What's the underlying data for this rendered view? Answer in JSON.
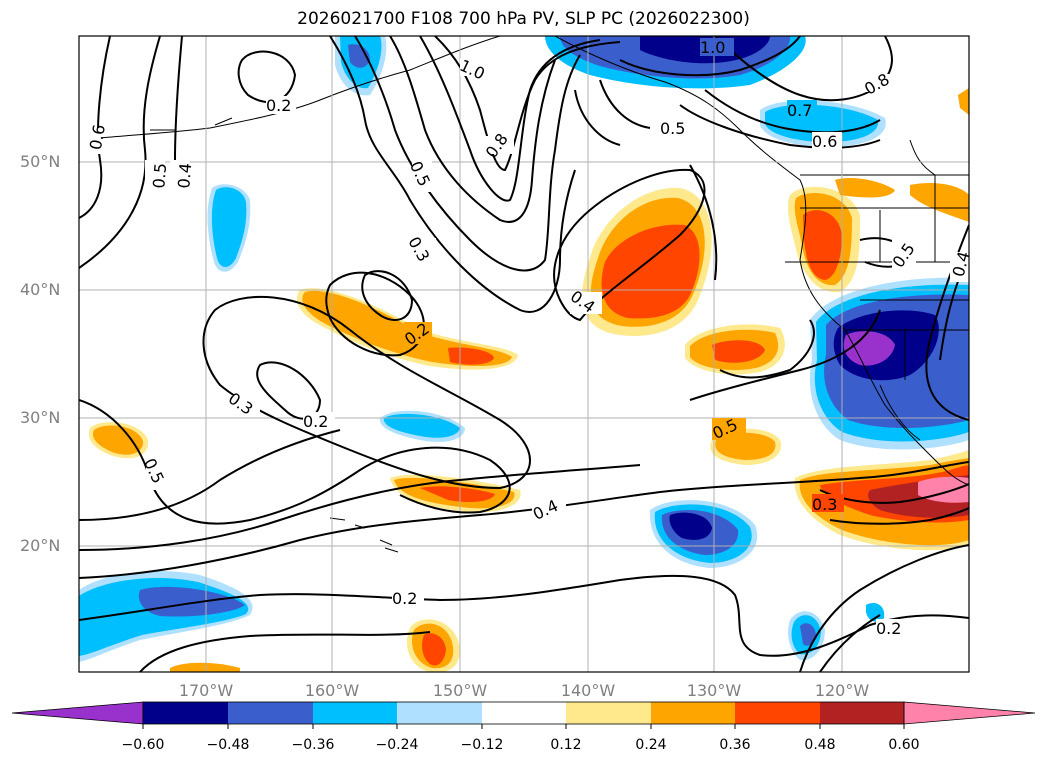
{
  "title": "2026021700 F108 700 hPa PV, SLP PC (2026022300)",
  "lat_labels": [
    "50°N",
    "40°N",
    "30°N",
    "20°N"
  ],
  "lon_labels": [
    "170°W",
    "160°W",
    "150°W",
    "140°W",
    "130°W",
    "120°W"
  ],
  "colorbar": {
    "ticks": [
      "−0.60",
      "−0.48",
      "−0.36",
      "−0.24",
      "−0.12",
      "0.12",
      "0.24",
      "0.36",
      "0.48",
      "0.60"
    ],
    "colors": [
      "#9932cc",
      "#00008b",
      "#3a5fcd",
      "#00bfff",
      "#b0e0ff",
      "#ffffff",
      "#ffe98c",
      "#ffa500",
      "#ff4500",
      "#b22222",
      "#ff82ab"
    ]
  },
  "contour_labels": [
    "1.0",
    "1.0",
    "0.8",
    "0.8",
    "0.7",
    "0.6",
    "0.5",
    "0.6",
    "0.5",
    "0.4",
    "0.5",
    "0.2",
    "0.3",
    "0.2",
    "0.4",
    "0.3",
    "0.2",
    "0.5",
    "0.5",
    "0.4",
    "0.3",
    "0.2",
    "0.2",
    "0.5",
    "0.4"
  ]
}
